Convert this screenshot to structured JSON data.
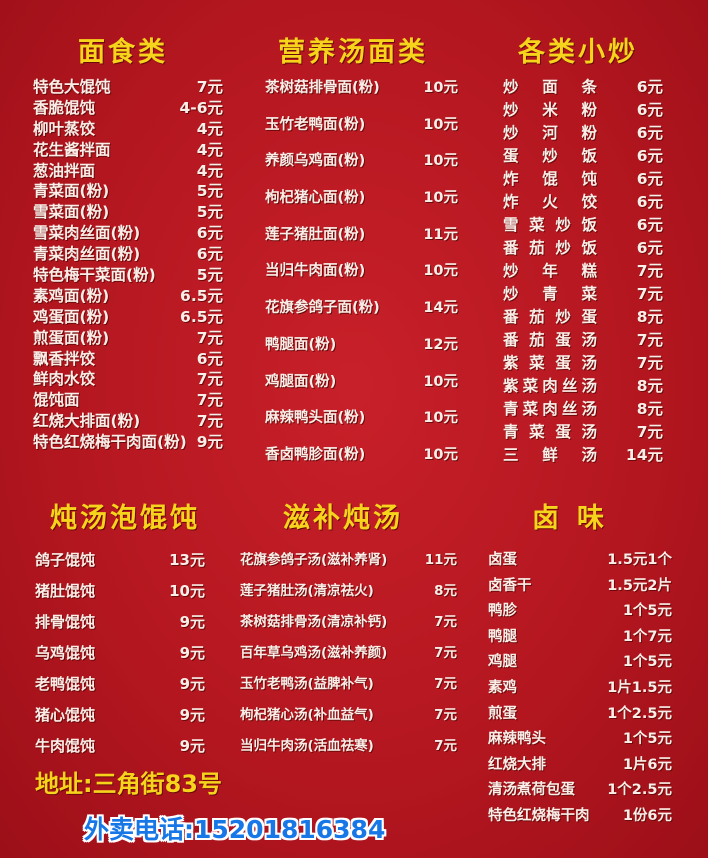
{
  "sections": {
    "noodles": {
      "title": "面食类",
      "items": [
        {
          "name": "特色大馄饨",
          "price": "7元"
        },
        {
          "name": "香脆馄饨",
          "price": "4-6元"
        },
        {
          "name": "柳叶蒸饺",
          "price": "4元"
        },
        {
          "name": "花生酱拌面",
          "price": "4元"
        },
        {
          "name": "葱油拌面",
          "price": "4元"
        },
        {
          "name": "青菜面(粉)",
          "price": "5元"
        },
        {
          "name": "雪菜面(粉)",
          "price": "5元"
        },
        {
          "name": "雪菜肉丝面(粉)",
          "price": "6元"
        },
        {
          "name": "青菜肉丝面(粉)",
          "price": "6元"
        },
        {
          "name": "特色梅干菜面(粉)",
          "price": "5元"
        },
        {
          "name": "素鸡面(粉)",
          "price": "6.5元"
        },
        {
          "name": "鸡蛋面(粉)",
          "price": "6.5元"
        },
        {
          "name": "煎蛋面(粉)",
          "price": "7元"
        },
        {
          "name": "飘香拌饺",
          "price": "6元"
        },
        {
          "name": "鲜肉水饺",
          "price": "7元"
        },
        {
          "name": "馄饨面",
          "price": "7元"
        },
        {
          "name": "红烧大排面(粉)",
          "price": "7元"
        },
        {
          "name": "特色红烧梅干肉面(粉)",
          "price": "9元"
        }
      ]
    },
    "soup_noodles": {
      "title": "营养汤面类",
      "items": [
        {
          "name": "茶树菇排骨面(粉)",
          "price": "10元"
        },
        {
          "name": "玉竹老鸭面(粉)",
          "price": "10元"
        },
        {
          "name": "养颜乌鸡面(粉)",
          "price": "10元"
        },
        {
          "name": "枸杞猪心面(粉)",
          "price": "10元"
        },
        {
          "name": "莲子猪肚面(粉)",
          "price": "11元"
        },
        {
          "name": "当归牛肉面(粉)",
          "price": "10元"
        },
        {
          "name": "花旗参鸽子面(粉)",
          "price": "14元"
        },
        {
          "name": "鸭腿面(粉)",
          "price": "12元"
        },
        {
          "name": "鸡腿面(粉)",
          "price": "10元"
        },
        {
          "name": "麻辣鸭头面(粉)",
          "price": "10元"
        },
        {
          "name": "香卤鸭胗面(粉)",
          "price": "10元"
        }
      ]
    },
    "stir_fry": {
      "title": "各类小炒",
      "items": [
        {
          "name": "炒面条",
          "price": "6元"
        },
        {
          "name": "炒米粉",
          "price": "6元"
        },
        {
          "name": "炒河粉",
          "price": "6元"
        },
        {
          "name": "蛋炒饭",
          "price": "6元"
        },
        {
          "name": "炸馄饨",
          "price": "6元"
        },
        {
          "name": "炸火饺",
          "price": "6元"
        },
        {
          "name": "雪菜炒饭",
          "price": "6元"
        },
        {
          "name": "番茄炒饭",
          "price": "6元"
        },
        {
          "name": "炒年糕",
          "price": "7元"
        },
        {
          "name": "炒青菜",
          "price": "7元"
        },
        {
          "name": "番茄炒蛋",
          "price": "8元"
        },
        {
          "name": "番茄蛋汤",
          "price": "7元"
        },
        {
          "name": "紫菜蛋汤",
          "price": "7元"
        },
        {
          "name": "紫菜肉丝汤",
          "price": "8元"
        },
        {
          "name": "青菜肉丝汤",
          "price": "8元"
        },
        {
          "name": "青菜蛋汤",
          "price": "7元"
        },
        {
          "name": "三鲜汤",
          "price": "14元"
        }
      ]
    },
    "wonton": {
      "title": "炖汤泡馄饨",
      "items": [
        {
          "name": "鸽子馄饨",
          "price": "13元"
        },
        {
          "name": "猪肚馄饨",
          "price": "10元"
        },
        {
          "name": "排骨馄饨",
          "price": "9元"
        },
        {
          "name": "乌鸡馄饨",
          "price": "9元"
        },
        {
          "name": "老鸭馄饨",
          "price": "9元"
        },
        {
          "name": "猪心馄饨",
          "price": "9元"
        },
        {
          "name": "牛肉馄饨",
          "price": "9元"
        }
      ]
    },
    "tonic_soup": {
      "title": "滋补炖汤",
      "items": [
        {
          "name": "花旗参鸽子汤(滋补养肾)",
          "price": "11元"
        },
        {
          "name": "莲子猪肚汤(清凉祛火)",
          "price": "8元"
        },
        {
          "name": "茶树菇排骨汤(清凉补钙)",
          "price": "7元"
        },
        {
          "name": "百年草乌鸡汤(滋补养颜)",
          "price": "7元"
        },
        {
          "name": "玉竹老鸭汤(益脾补气)",
          "price": "7元"
        },
        {
          "name": "枸杞猪心汤(补血益气)",
          "price": "7元"
        },
        {
          "name": "当归牛肉汤(活血祛寒)",
          "price": "7元"
        }
      ]
    },
    "braised": {
      "title": "卤味",
      "items": [
        {
          "name": "卤蛋",
          "price": "1.5元1个"
        },
        {
          "name": "卤香干",
          "price": "1.5元2片"
        },
        {
          "name": "鸭胗",
          "price": "1个5元"
        },
        {
          "name": "鸭腿",
          "price": "1个7元"
        },
        {
          "name": "鸡腿",
          "price": "1个5元"
        },
        {
          "name": "素鸡",
          "price": "1片1.5元"
        },
        {
          "name": "煎蛋",
          "price": "1个2.5元"
        },
        {
          "name": "麻辣鸭头",
          "price": "1个5元"
        },
        {
          "name": "红烧大排",
          "price": "1片6元"
        },
        {
          "name": "清汤煮荷包蛋",
          "price": "1个2.5元"
        },
        {
          "name": "特色红烧梅干肉",
          "price": "1份6元"
        }
      ]
    }
  },
  "footer": {
    "address": "地址:三角街83号",
    "phone": "外卖电话:15201816384"
  },
  "colors": {
    "background": "#b3161f",
    "heading": "#f6d41c",
    "item_text": "#fbeee8",
    "phone": "#1877e6"
  }
}
